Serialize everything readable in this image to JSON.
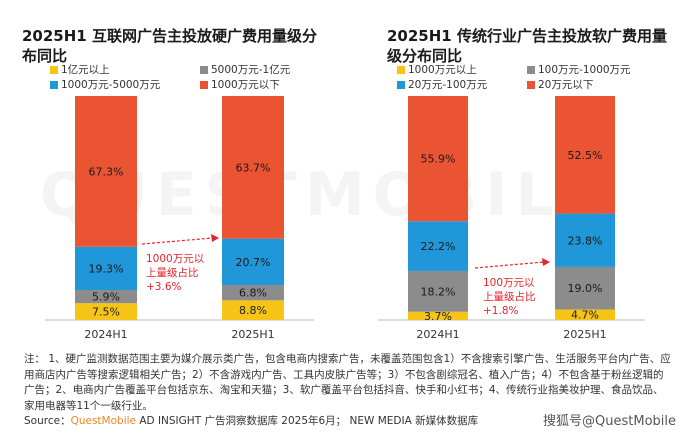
{
  "chart_data": [
    {
      "type": "bar",
      "stacked": true,
      "title": "2025H1 互联网广告主投放硬广费用量级分布同比",
      "categories": [
        "2024H1",
        "2025H1"
      ],
      "series": [
        {
          "name": "1亿元以上",
          "color": "#f6c416",
          "values": [
            7.5,
            8.8
          ],
          "labels": [
            "7.5%",
            "8.8%"
          ]
        },
        {
          "name": "5000万元-1亿元",
          "color": "#8c8c8c",
          "values": [
            5.9,
            6.8
          ],
          "labels": [
            "5.9%",
            "6.8%"
          ]
        },
        {
          "name": "1000万元-5000万元",
          "color": "#1f97d8",
          "values": [
            19.3,
            20.7
          ],
          "labels": [
            "19.3%",
            "20.7%"
          ]
        },
        {
          "name": "1000万元以下",
          "color": "#ea5433",
          "values": [
            67.3,
            63.7
          ],
          "labels": [
            "67.3%",
            "63.7%"
          ]
        }
      ],
      "annotation": [
        "1000万元以",
        "上量级占比",
        "+3.6%"
      ]
    },
    {
      "type": "bar",
      "stacked": true,
      "title": "2025H1 传统行业广告主投放软广费用量级分布同比",
      "categories": [
        "2024H1",
        "2025H1"
      ],
      "series": [
        {
          "name": "1000万元以上",
          "color": "#f6c416",
          "values": [
            3.7,
            4.7
          ],
          "labels": [
            "3.7%",
            "4.7%"
          ]
        },
        {
          "name": "100万元-1000万元",
          "color": "#8c8c8c",
          "values": [
            18.2,
            19.0
          ],
          "labels": [
            "18.2%",
            "19.0%"
          ]
        },
        {
          "name": "20万元-100万元",
          "color": "#1f97d8",
          "values": [
            22.2,
            23.8
          ],
          "labels": [
            "22.2%",
            "23.8%"
          ]
        },
        {
          "name": "20万元以下",
          "color": "#ea5433",
          "values": [
            55.9,
            52.5
          ],
          "labels": [
            "55.9%",
            "52.5%"
          ]
        }
      ],
      "annotation": [
        "100万元以",
        "上量级占比",
        "+1.8%"
      ]
    }
  ],
  "footnote": "注： 1、硬广监测数据范围主要为媒介展示类广告，包含电商内搜索广告，未覆盖范围包含1）不含搜索引擎广告、生活服务平台内广告、应用商店内广告等搜索逻辑相关广告；2）不含游戏内广告、工具内皮肤广告等；3）不包含剧综冠名、植入广告；4）不包含基于粉丝逻辑的广告；2、电商内广告覆盖平台包括京东、淘宝和天猫；3、软广覆盖平台包括抖音、快手和小红书；4、传统行业指美妆护理、食品饮品、家用电器等11个一级行业。",
  "source": {
    "prefix": "Source：",
    "brand": "QuestMobile",
    "rest": " AD INSIGHT 广告洞察数据库 2025年6月； NEW MEDIA 新媒体数据库"
  },
  "watermark": "搜狐号@QuestMobile",
  "bg_watermark": "QUESTMOBILE"
}
